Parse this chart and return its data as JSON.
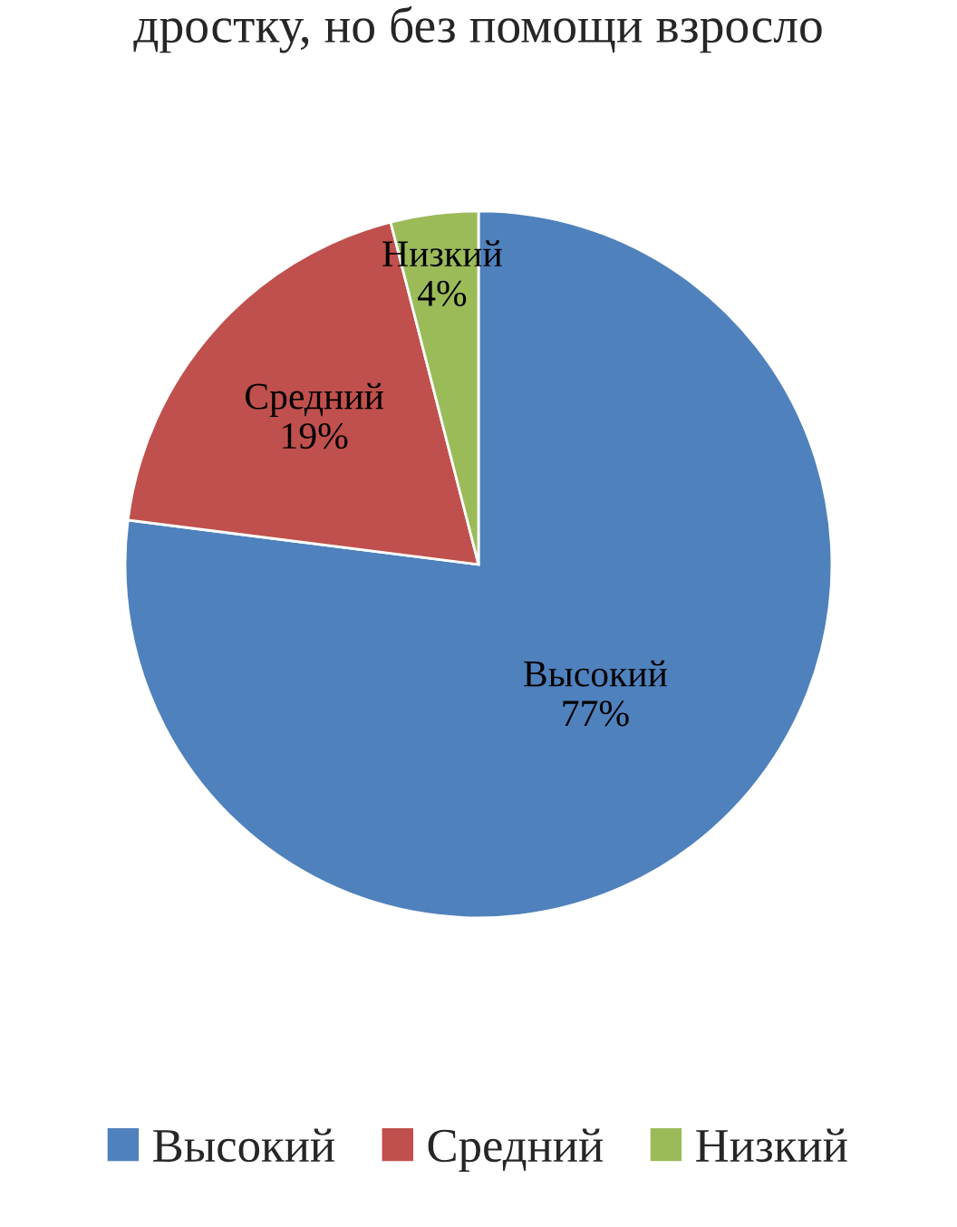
{
  "chart_data": {
    "type": "pie",
    "categories": [
      "Высокий",
      "Средний",
      "Низкий"
    ],
    "values": [
      77,
      19,
      4
    ],
    "colors": [
      "#4f81bd",
      "#c0504d",
      "#9bbb59"
    ],
    "value_labels": [
      "77%",
      "19%",
      "4%"
    ],
    "legend": "bottom",
    "annotations": [
      "дростку, но без помощи взросло"
    ]
  }
}
